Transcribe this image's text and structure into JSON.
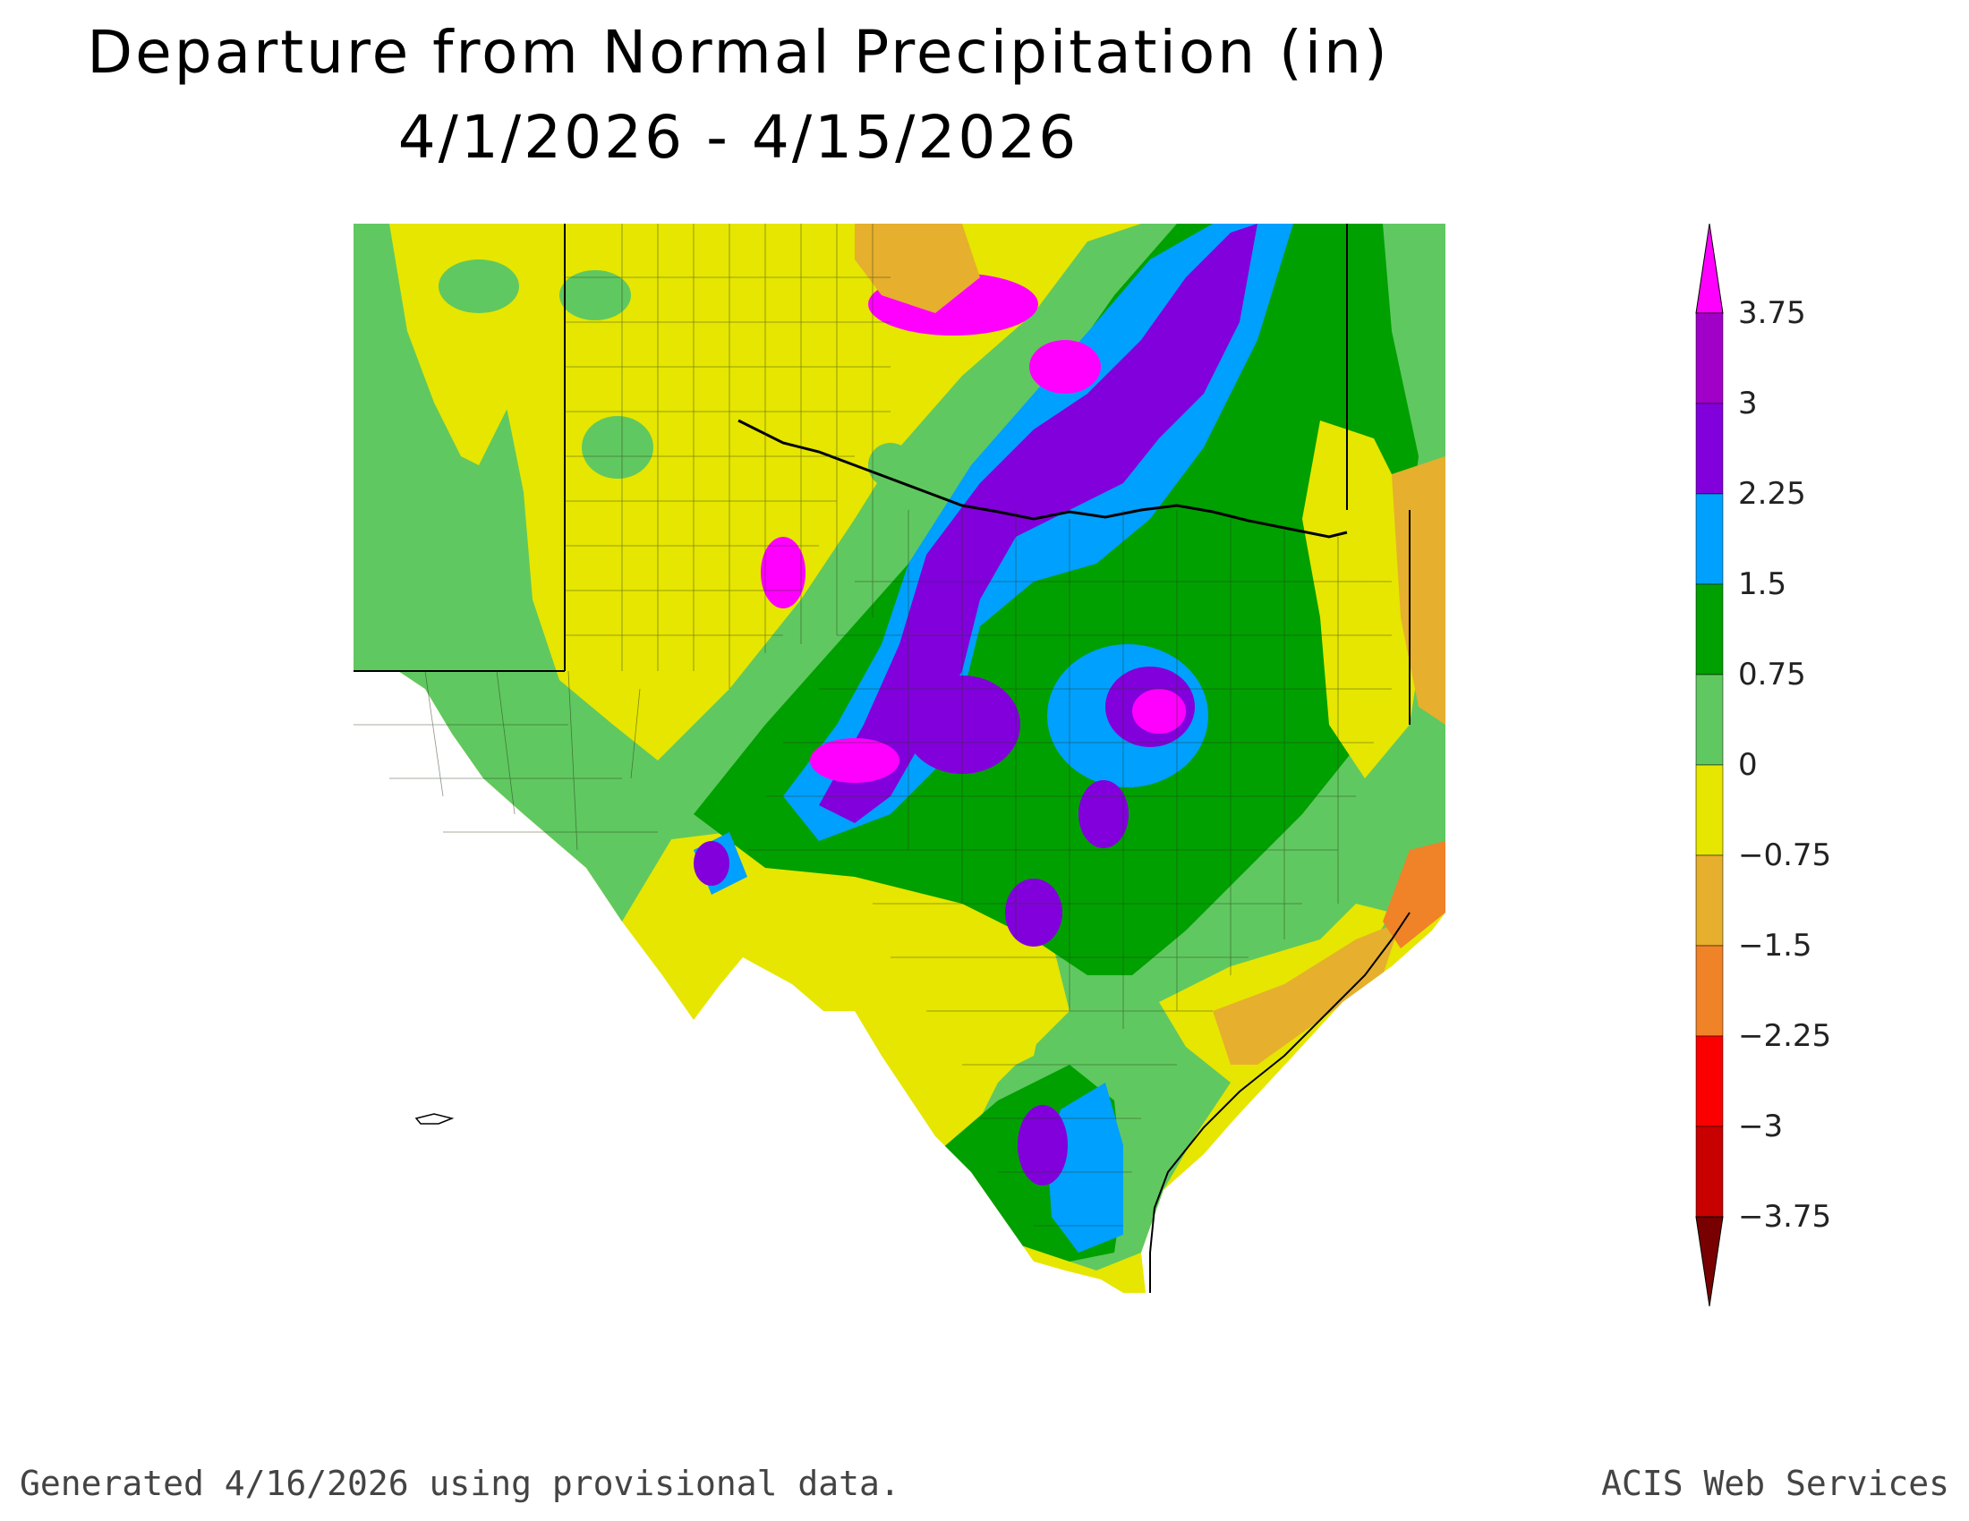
{
  "title": "Departure from Normal Precipitation (in)",
  "subtitle": "4/1/2026 - 4/15/2026",
  "legend": {
    "top_label": "3.75",
    "bins": [
      {
        "label": "3.75",
        "color": "#a000c8"
      },
      {
        "label": "3",
        "color": "#8200dc"
      },
      {
        "label": "2.25",
        "color": "#00a0ff"
      },
      {
        "label": "1.5",
        "color": "#00a000"
      },
      {
        "label": "0.75",
        "color": "#60c860"
      },
      {
        "label": "0",
        "color": "#e6e600"
      },
      {
        "label": "-0.75",
        "color": "#e6af2d"
      },
      {
        "label": "-1.5",
        "color": "#f08228"
      },
      {
        "label": "-2.25",
        "color": "#fa0000"
      },
      {
        "label": "-3",
        "color": "#c80000"
      },
      {
        "label": "-3.75",
        "color": "#a00000"
      }
    ],
    "max_arrow_color": "#ff00ff",
    "min_arrow_color": "#780000"
  },
  "footer": {
    "generated": "Generated 4/16/2026  using provisional data.",
    "source": "ACIS Web Services"
  }
}
